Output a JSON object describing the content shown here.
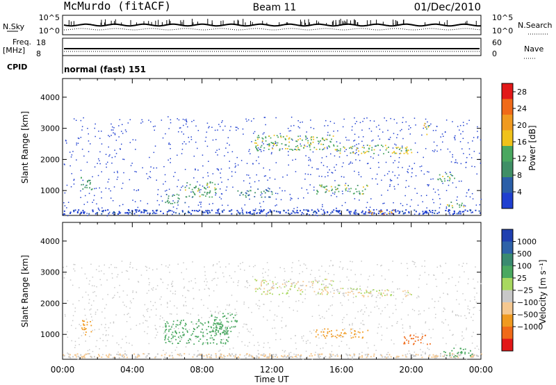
{
  "header": {
    "station": "McMurdo (fitACF)",
    "beam": "Beam 11",
    "date": "01/Dec/2010"
  },
  "strip": {
    "nsky_label": "N.Sky",
    "nsearch_label": "N.Search",
    "nsky_ticks": [
      "10^5",
      "10^0"
    ],
    "nsky_right_ticks": [
      "10^5",
      "10^0"
    ],
    "freq_label": "Freq.",
    "freq_unit": "[MHz]",
    "freq_ticks": [
      "18",
      "8"
    ],
    "nave_label": "Nave",
    "nave_ticks": [
      "60",
      "0"
    ],
    "cpid_label": "CPID",
    "cpid_value": "normal (fast) 151"
  },
  "colors": {
    "power_scale": [
      "#1f3fd0",
      "#2b5fa8",
      "#3f8f66",
      "#4aa860",
      "#f0c21a",
      "#f09a20",
      "#f06a18",
      "#e21818"
    ],
    "velocity_scale": [
      "#e21818",
      "#f06a18",
      "#f09a20",
      "#f5c890",
      "#c8c8c8",
      "#a8d860",
      "#4aa860",
      "#3a8a70",
      "#2e62a8",
      "#1f3fb0"
    ]
  },
  "chart_data": [
    {
      "type": "heatmap",
      "panel": "power",
      "ylabel": "Slant Range [km]",
      "yticks": [
        "1000",
        "2000",
        "3000",
        "4000"
      ],
      "ylim": [
        200,
        4600
      ],
      "xlabel": "",
      "xticks": [
        "00:00",
        "04:00",
        "08:00",
        "12:00",
        "16:00",
        "20:00",
        "00:00"
      ],
      "xlim_hours": [
        0,
        24
      ],
      "colorbar_label": "Power [dB]",
      "colorbar_ticks": [
        "4",
        "8",
        "12",
        "16",
        "20",
        "24",
        "28"
      ],
      "colorbar_range": [
        0,
        30
      ],
      "regions": [
        {
          "t": [
            1.0,
            1.7
          ],
          "r": [
            1000,
            1500
          ],
          "level": 12
        },
        {
          "t": [
            5.8,
            7.0
          ],
          "r": [
            600,
            900
          ],
          "level": 10
        },
        {
          "t": [
            7.0,
            8.8
          ],
          "r": [
            800,
            1300
          ],
          "level": 12
        },
        {
          "t": [
            10.0,
            12.0
          ],
          "r": [
            800,
            1100
          ],
          "level": 8
        },
        {
          "t": [
            11.0,
            15.5
          ],
          "r": [
            2300,
            2800
          ],
          "level": 14
        },
        {
          "t": [
            15.5,
            20.0
          ],
          "r": [
            2200,
            2500
          ],
          "level": 14
        },
        {
          "t": [
            14.5,
            17.5
          ],
          "r": [
            900,
            1200
          ],
          "level": 12
        },
        {
          "t": [
            20.7,
            21.0
          ],
          "r": [
            2800,
            3200
          ],
          "level": 16
        },
        {
          "t": [
            21.5,
            22.5
          ],
          "r": [
            1300,
            1600
          ],
          "level": 12
        },
        {
          "t": [
            22.0,
            23.2
          ],
          "r": [
            450,
            650
          ],
          "level": 12
        },
        {
          "t": [
            17.5,
            19.0
          ],
          "r": [
            250,
            400
          ],
          "level": 20
        }
      ]
    },
    {
      "type": "heatmap",
      "panel": "velocity",
      "ylabel": "Slant Range [km]",
      "yticks": [
        "1000",
        "2000",
        "3000",
        "4000"
      ],
      "ylim": [
        200,
        4600
      ],
      "xlabel": "Time UT",
      "xticks": [
        "00:00",
        "04:00",
        "08:00",
        "12:00",
        "16:00",
        "20:00",
        "00:00"
      ],
      "xlim_hours": [
        0,
        24
      ],
      "colorbar_label": "Velocity [m s⁻¹]",
      "colorbar_ticks": [
        "1000",
        "500",
        "100",
        "25",
        "−25",
        "−100",
        "−500",
        "−1000"
      ],
      "regions": [
        {
          "t": [
            1.0,
            1.7
          ],
          "r": [
            1000,
            1500
          ],
          "level": -300
        },
        {
          "t": [
            5.8,
            9.5
          ],
          "r": [
            700,
            1500
          ],
          "level": 300
        },
        {
          "t": [
            8.5,
            10.0
          ],
          "r": [
            1000,
            1700
          ],
          "level": 300
        },
        {
          "t": [
            11.0,
            15.5
          ],
          "r": [
            2300,
            2800
          ],
          "level": 0
        },
        {
          "t": [
            15.5,
            20.0
          ],
          "r": [
            2200,
            2500
          ],
          "level": 0
        },
        {
          "t": [
            14.5,
            17.5
          ],
          "r": [
            900,
            1200
          ],
          "level": -300
        },
        {
          "t": [
            19.5,
            21.2
          ],
          "r": [
            700,
            1000
          ],
          "level": -600
        },
        {
          "t": [
            21.8,
            23.5
          ],
          "r": [
            300,
            600
          ],
          "level": 300
        }
      ]
    }
  ]
}
